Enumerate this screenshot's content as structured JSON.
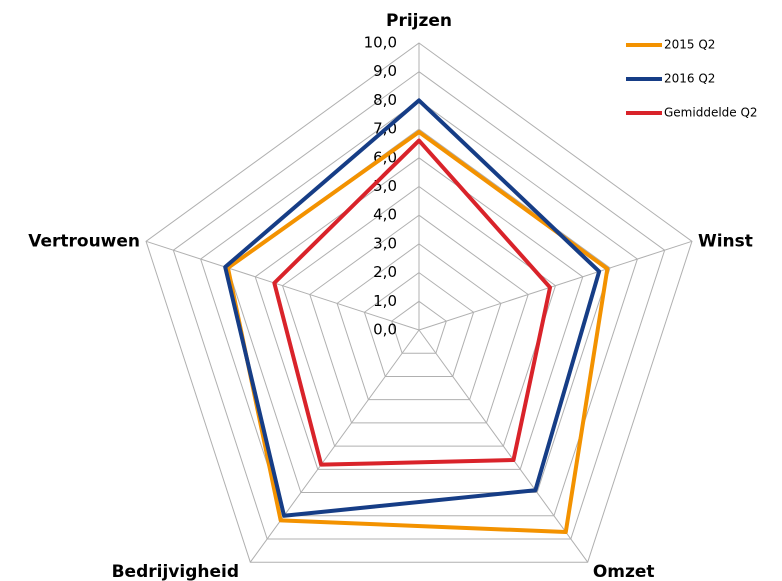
{
  "chart_data": {
    "type": "radar",
    "categories": [
      "Prijzen",
      "Winst",
      "Omzet",
      "Bedrijvigheid",
      "Vertrouwen"
    ],
    "series": [
      {
        "name": "2015 Q2",
        "color": "#f39200",
        "values": [
          6.9,
          6.9,
          8.7,
          8.2,
          7.0
        ]
      },
      {
        "name": "2016 Q2",
        "color": "#163d86",
        "values": [
          8.0,
          6.6,
          6.9,
          8.0,
          7.1
        ]
      },
      {
        "name": "Gemiddelde Q2",
        "color": "#d9232a",
        "values": [
          6.6,
          4.8,
          5.6,
          5.8,
          5.3
        ]
      }
    ],
    "rlim": [
      0,
      10
    ],
    "rticks": [
      {
        "value": 0,
        "label": "0,0"
      },
      {
        "value": 1,
        "label": "1,0"
      },
      {
        "value": 2,
        "label": "2,0"
      },
      {
        "value": 3,
        "label": "3,0"
      },
      {
        "value": 4,
        "label": "4,0"
      },
      {
        "value": 5,
        "label": "5,0"
      },
      {
        "value": 6,
        "label": "6,0"
      },
      {
        "value": 7,
        "label": "7,0"
      },
      {
        "value": 8,
        "label": "8,0"
      },
      {
        "value": 9,
        "label": "9,0"
      },
      {
        "value": 10,
        "label": "10,0"
      }
    ],
    "grid": true,
    "legend": "top-right"
  }
}
